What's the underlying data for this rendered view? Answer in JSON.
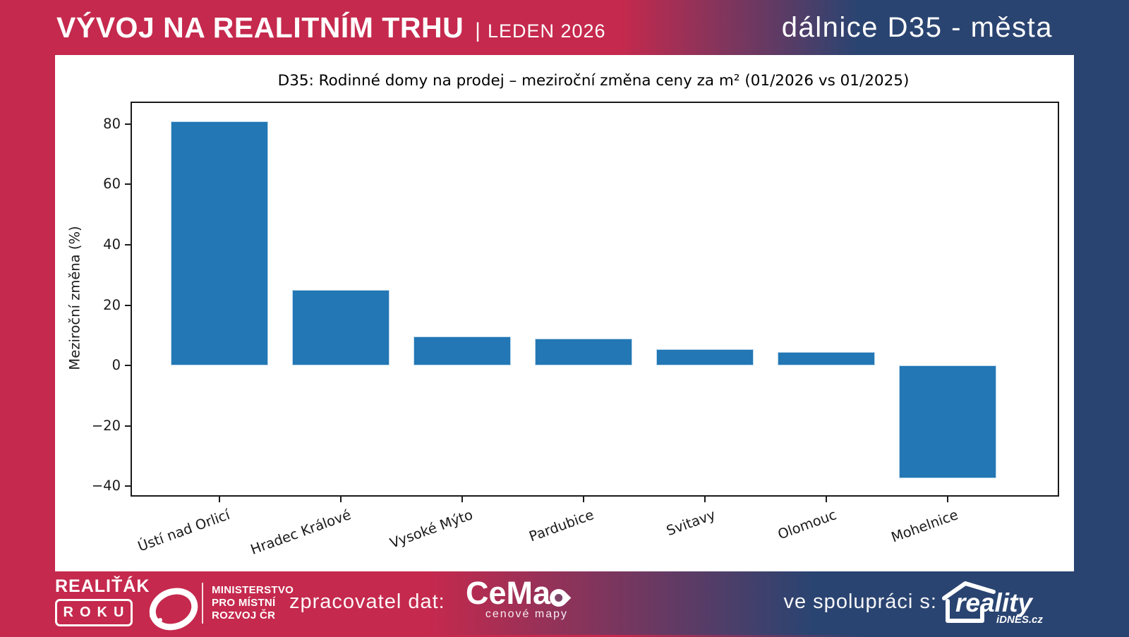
{
  "header": {
    "title": "VÝVOJ NA REALITNÍM TRHU",
    "separator": "|",
    "period": "LEDEN 2026",
    "subtitle": "dálnice D35 - města"
  },
  "chart_data": {
    "type": "bar",
    "title": "D35: Rodinné domy na prodej – meziroční změna ceny za m² (01/2026 vs 01/2025)",
    "ylabel": "Meziroční změna (%)",
    "xlabel": "",
    "categories": [
      "Ústí nad Orlicí",
      "Hradec Králové",
      "Vysoké Mýto",
      "Pardubice",
      "Svitavy",
      "Olomouc",
      "Mohelnice"
    ],
    "values": [
      81,
      25,
      9.7,
      8.9,
      5.3,
      4.4,
      -37.5
    ],
    "yticks": [
      80,
      60,
      40,
      20,
      0,
      -20,
      -40
    ],
    "ylim": [
      -43,
      87
    ],
    "grid": false,
    "legend": null,
    "x_tick_label_rotation_deg": 20,
    "bar_color": "#2277b4",
    "bar_edge_color": "#bdd8ec"
  },
  "footer": {
    "award_line1": "REALIŤÁK",
    "award_line2": "ROKU",
    "ministry_lines": [
      "MINISTERSTVO",
      "PRO MÍSTNÍ",
      "ROZVOJ ČR"
    ],
    "data_provider_label": "zpracovatel dat:",
    "cemap_name": "CeMa",
    "cemap_tagline": "cenové mapy",
    "partner_label": "ve spolupráci s:",
    "partner_name": "reality",
    "partner_sub": "iDNES.cz"
  },
  "colors": {
    "crimson": "#c5294d",
    "navy": "#2a4471",
    "bar_blue": "#2277b4"
  }
}
